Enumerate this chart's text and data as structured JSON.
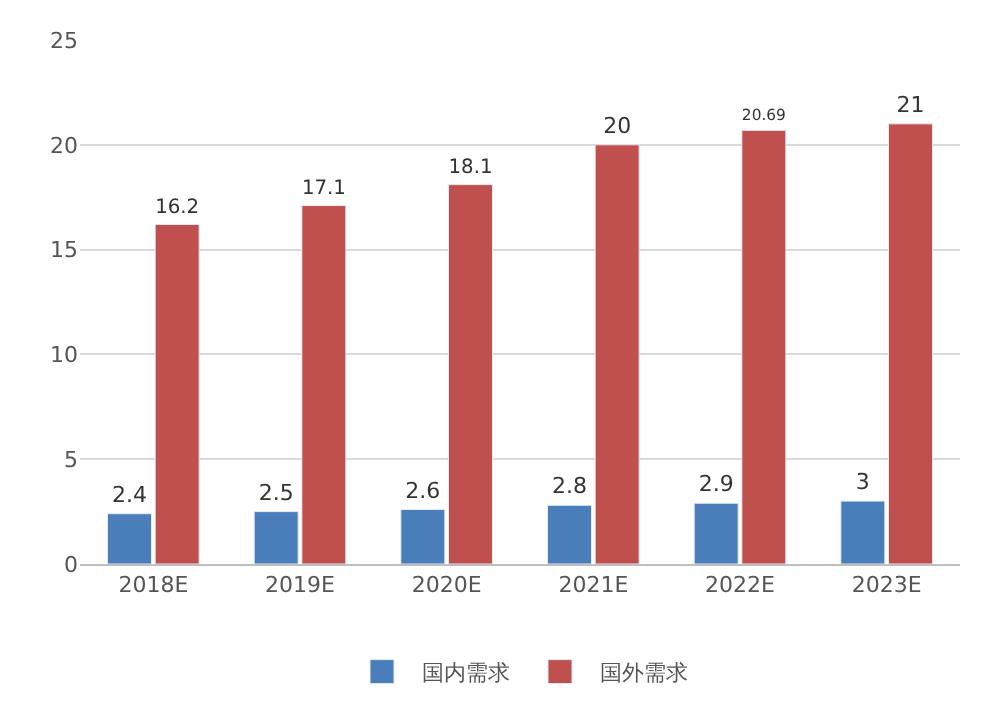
{
  "chart_data": {
    "type": "bar",
    "categories": [
      "2018E",
      "2019E",
      "2020E",
      "2021E",
      "2022E",
      "2023E"
    ],
    "series": [
      {
        "name": "国内需求",
        "color": "#4a7ebb",
        "values": [
          2.4,
          2.5,
          2.6,
          2.8,
          2.9,
          3
        ],
        "value_labels": [
          "2.4",
          "2.5",
          "2.6",
          "2.8",
          "2.9",
          "3"
        ]
      },
      {
        "name": "国外需求",
        "color": "#c0504d",
        "values": [
          16.2,
          17.1,
          18.1,
          20,
          20.69,
          21
        ],
        "value_labels": [
          "16.2",
          "17.1",
          "18.1",
          "20",
          "20.69",
          "21"
        ]
      }
    ],
    "ylim": [
      0,
      25
    ],
    "yticks": [
      0,
      5,
      10,
      15,
      20,
      25
    ],
    "grid": "y",
    "legend": "bottom"
  }
}
